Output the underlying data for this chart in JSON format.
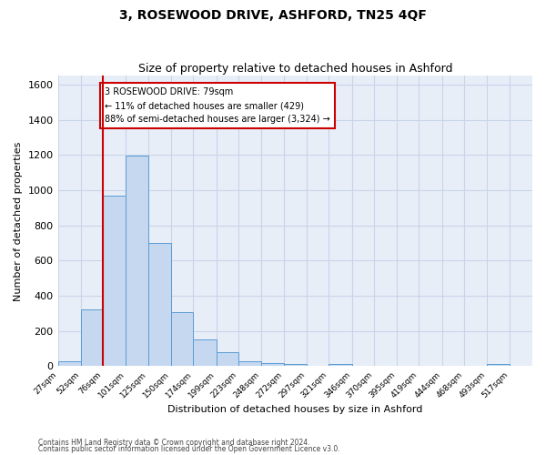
{
  "title": "3, ROSEWOOD DRIVE, ASHFORD, TN25 4QF",
  "subtitle": "Size of property relative to detached houses in Ashford",
  "xlabel": "Distribution of detached houses by size in Ashford",
  "ylabel": "Number of detached properties",
  "bins": [
    "27sqm",
    "52sqm",
    "76sqm",
    "101sqm",
    "125sqm",
    "150sqm",
    "174sqm",
    "199sqm",
    "223sqm",
    "248sqm",
    "272sqm",
    "297sqm",
    "321sqm",
    "346sqm",
    "370sqm",
    "395sqm",
    "419sqm",
    "444sqm",
    "468sqm",
    "493sqm",
    "517sqm"
  ],
  "values": [
    30,
    325,
    970,
    1195,
    700,
    305,
    155,
    80,
    27,
    18,
    15,
    0,
    15,
    0,
    0,
    0,
    0,
    0,
    0,
    15,
    0
  ],
  "bar_color": "#c5d8ef",
  "bar_edge_color": "#5b9bd5",
  "grid_color": "#c8d4e8",
  "background_color": "#e8eef8",
  "vline_x_index": 2,
  "vline_color": "#cc0000",
  "annotation_text": "3 ROSEWOOD DRIVE: 79sqm\n← 11% of detached houses are smaller (429)\n88% of semi-detached houses are larger (3,324) →",
  "annotation_box_color": "#ffffff",
  "annotation_box_edge": "#cc0000",
  "ylim": [
    0,
    1650
  ],
  "yticks": [
    0,
    200,
    400,
    600,
    800,
    1000,
    1200,
    1400,
    1600
  ],
  "bin_edges": [
    27,
    52,
    76,
    101,
    125,
    150,
    174,
    199,
    223,
    248,
    272,
    297,
    321,
    346,
    370,
    395,
    419,
    444,
    468,
    493,
    517,
    542
  ],
  "footer1": "Contains HM Land Registry data © Crown copyright and database right 2024.",
  "footer2": "Contains public sector information licensed under the Open Government Licence v3.0."
}
